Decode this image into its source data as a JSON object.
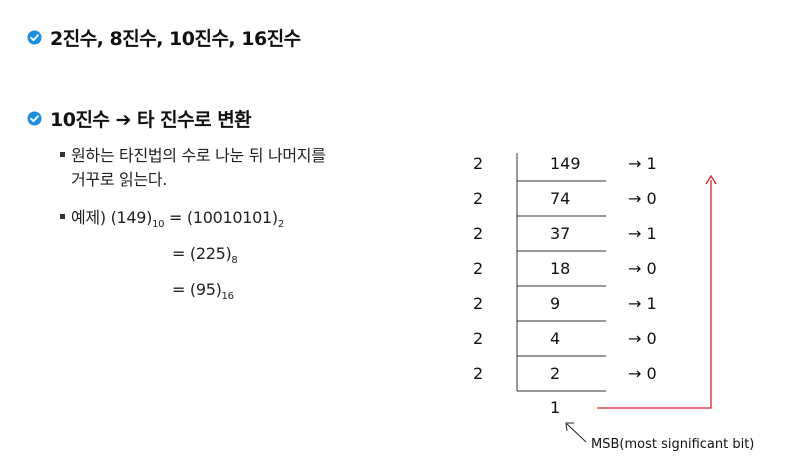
{
  "section1": {
    "title": "2진수, 8진수, 10진수, 16진수"
  },
  "section2": {
    "title": "10진수 ➔ 타 진수로 변환"
  },
  "bullet1": {
    "line1": "원하는 타진법의 수로 나눈 뒤 나머지를",
    "line2": "거꾸로 읽는다."
  },
  "example": {
    "prefix": "예제) (149)",
    "sub10": "10",
    "eq_bin": " = (10010101)",
    "sub2": "2",
    "eq_oct": "= (225)",
    "sub8": "8",
    "eq_hex": "= (95)",
    "sub16": "16"
  },
  "division": {
    "divisor": "2",
    "rows": [
      {
        "quotient": "149",
        "remainder": "→ 1"
      },
      {
        "quotient": "74",
        "remainder": "→ 0"
      },
      {
        "quotient": "37",
        "remainder": "→ 1"
      },
      {
        "quotient": "18",
        "remainder": "→ 0"
      },
      {
        "quotient": "9",
        "remainder": "→ 1"
      },
      {
        "quotient": "4",
        "remainder": "→ 0"
      },
      {
        "quotient": "2",
        "remainder": "→ 0"
      }
    ],
    "final": "1",
    "msb_label": "MSB(most significant bit)"
  },
  "colors": {
    "check": "#1a8fe0",
    "arrow": "#d9232e",
    "line": "#333333"
  }
}
